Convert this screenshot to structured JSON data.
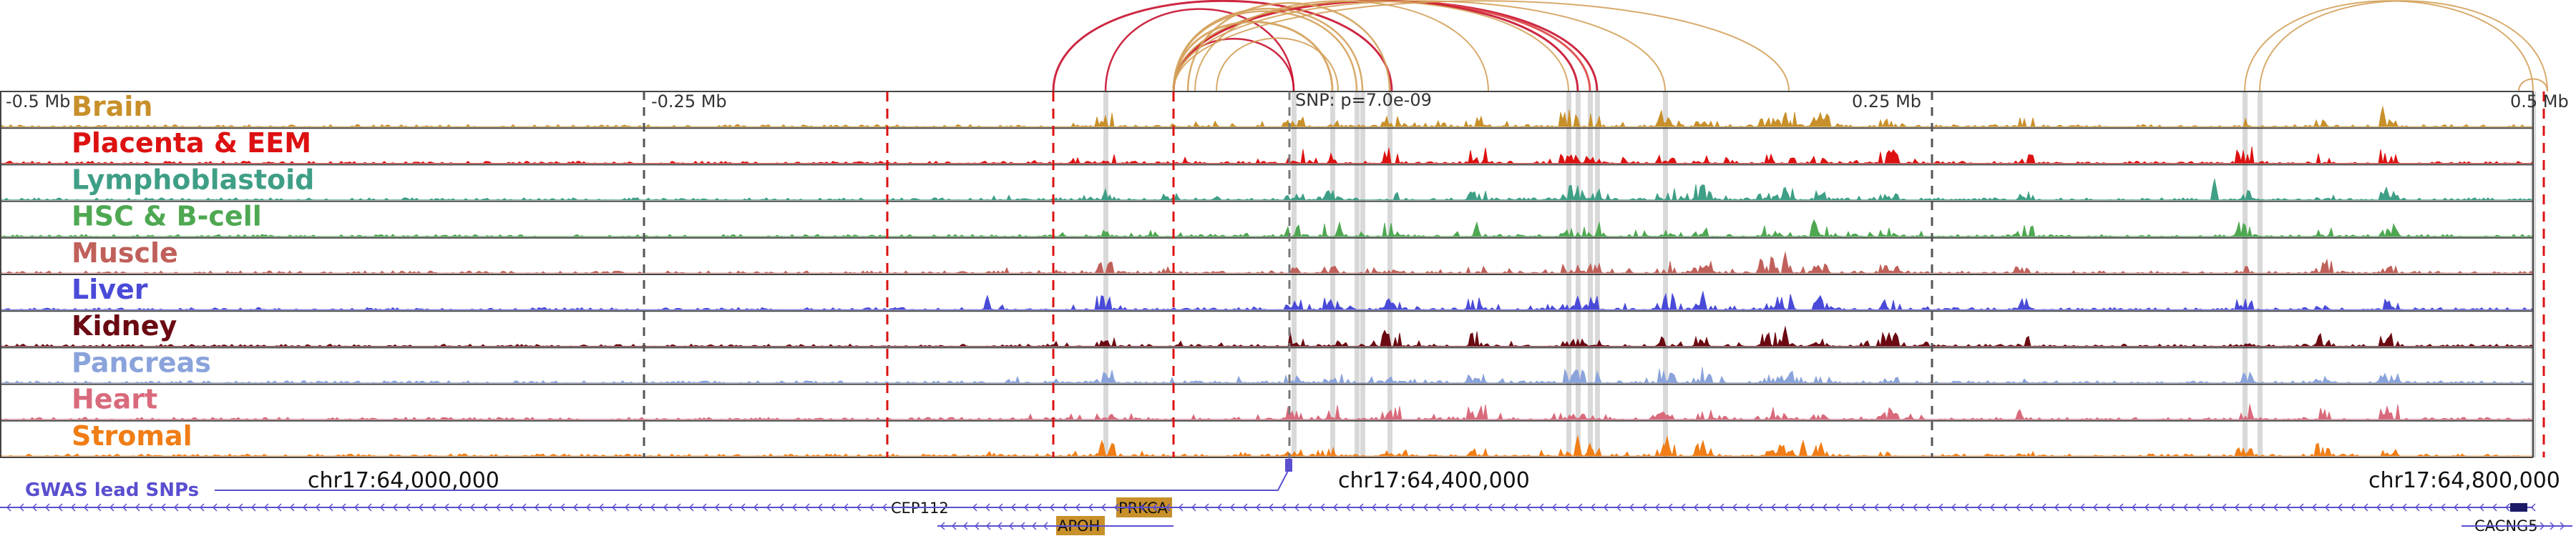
{
  "axis": {
    "left_label": "-0.5 Mb",
    "quarter_left_label": "-0.25 Mb",
    "snp_label": "SNP: p=7.0e-09",
    "quarter_right_label": "0.25 Mb",
    "right_label": "0.5 Mb"
  },
  "tracks": [
    {
      "name": "Brain",
      "color": "#c8902a"
    },
    {
      "name": "Placenta & EEM",
      "color": "#dd1111"
    },
    {
      "name": "Lymphoblastoid",
      "color": "#3f9f86"
    },
    {
      "name": "HSC & B-cell",
      "color": "#4ea852"
    },
    {
      "name": "Muscle",
      "color": "#c0605a"
    },
    {
      "name": "Liver",
      "color": "#4a4ad8"
    },
    {
      "name": "Kidney",
      "color": "#6b0a12"
    },
    {
      "name": "Pancreas",
      "color": "#8aa3db"
    },
    {
      "name": "Heart",
      "color": "#d96a7c"
    },
    {
      "name": "Stromal",
      "color": "#f07d15"
    }
  ],
  "gwas": {
    "label": "GWAS lead SNPs",
    "color": "#5a4fcf"
  },
  "coordinates": [
    "chr17:64,000,000",
    "chr17:64,400,000",
    "chr17:64,800,000"
  ],
  "genes": [
    {
      "name": "CEP112",
      "boxed": false
    },
    {
      "name": "PRKCA",
      "boxed": true
    },
    {
      "name": "APOH",
      "boxed": true
    },
    {
      "name": "CACNG5",
      "boxed": false
    }
  ],
  "colors": {
    "gene_box": "#c8902a",
    "gene_line": "#5a4fcf",
    "red_dash": "#dd1111"
  }
}
